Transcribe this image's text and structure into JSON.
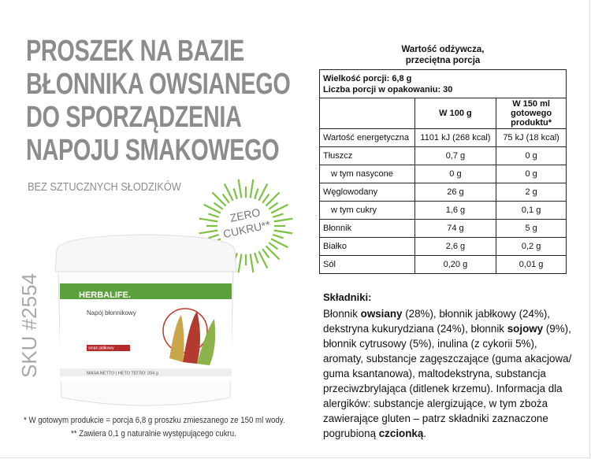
{
  "header": {
    "title_lines": [
      "PROSZEK NA BAZIE",
      "BŁONNIKA OWSIANEGO",
      "DO SPORZĄDZENIA",
      "NAPOJU SMAKOWEGO"
    ],
    "subtitle": "BEZ SZTUCZNYCH SŁODZIKÓW"
  },
  "badge": {
    "line1": "ZERO",
    "line2": "CUKRU**"
  },
  "product": {
    "brand": "HERBALIFE.",
    "name": "Napój błonnikowy",
    "flavor": "smak jabłkowy",
    "net": "MASA NETTO | НЕТО ТЕГЛО: 204 g",
    "sku": "SKU #2554"
  },
  "footnotes": [
    "* W gotowym produkcie = porcja 6,8 g proszku zmieszanego ze 150 ml wody.",
    "** Zawiera 0,1 g naturalnie występującego cukru."
  ],
  "table": {
    "caption_lines": [
      "Wartość odżywcza,",
      "przeciętna porcja"
    ],
    "serving": [
      "Wielkość porcji: 6,8 g",
      "Liczba porcji w opakowaniu: 30"
    ],
    "columns": [
      "W 100 g",
      "W 150 ml gotowego produktu*"
    ],
    "rows": [
      {
        "cells": [
          "Wartość energetyczna",
          "1101 kJ (268 kcal)",
          "75 kJ (18 kcal)"
        ],
        "indent": false
      },
      {
        "cells": [
          "Tłuszcz",
          "0,7 g",
          "0 g"
        ],
        "indent": false
      },
      {
        "cells": [
          "w tym nasycone",
          "0 g",
          "0 g"
        ],
        "indent": true
      },
      {
        "cells": [
          "Węglowodany",
          "26 g",
          "2 g"
        ],
        "indent": false
      },
      {
        "cells": [
          "w tym cukry",
          "1,6 g",
          "0,1 g"
        ],
        "indent": true
      },
      {
        "cells": [
          "Błonnik",
          "74 g",
          "5 g"
        ],
        "indent": false
      },
      {
        "cells": [
          "Białko",
          "2,6 g",
          "0,2 g"
        ],
        "indent": false
      },
      {
        "cells": [
          "Sól",
          "0,20 g",
          "0,01 g"
        ],
        "indent": false
      }
    ]
  },
  "ingredients": {
    "heading": "Składniki:",
    "segments": [
      {
        "text": "Błonnik ",
        "bold": false
      },
      {
        "text": "owsiany",
        "bold": true
      },
      {
        "text": " (28%), błonnik jabłkowy (24%), dekstryna kukurydziana (24%), błonnik ",
        "bold": false
      },
      {
        "text": "sojowy",
        "bold": true
      },
      {
        "text": " (9%), błonnik cytrusowy (5%), inulina (z cykorii 5%), aromaty, substancje zagęszczające (guma akacjowa/ guma ksantanowa), maltodekstryna, substancja przeciwzbrylająca (ditlenek krzemu). Informacja dla alergików: substancje alergizujące, w tym zboża zawierające gluten – patrz składniki zaznaczone pogrubioną ",
        "bold": false
      },
      {
        "text": "czcionką",
        "bold": true
      },
      {
        "text": ".",
        "bold": false
      }
    ]
  }
}
